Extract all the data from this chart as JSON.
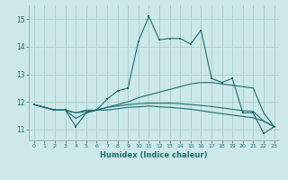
{
  "xlabel": "Humidex (Indice chaleur)",
  "bg_color": "#cce8e8",
  "grid_color": "#aacccc",
  "line_color": "#1a6e6e",
  "xlim": [
    -0.5,
    23.5
  ],
  "ylim": [
    10.6,
    15.5
  ],
  "yticks": [
    11,
    12,
    13,
    14,
    15
  ],
  "xticks": [
    0,
    1,
    2,
    3,
    4,
    5,
    6,
    7,
    8,
    9,
    10,
    11,
    12,
    13,
    14,
    15,
    16,
    17,
    18,
    19,
    20,
    21,
    22,
    23
  ],
  "line1_x": [
    0,
    1,
    2,
    3,
    4,
    5,
    6,
    7,
    8,
    9,
    10,
    11,
    12,
    13,
    14,
    15,
    16,
    17,
    18,
    19,
    20,
    21,
    22,
    23
  ],
  "line1_y": [
    11.9,
    11.8,
    11.7,
    11.7,
    11.1,
    11.6,
    11.7,
    12.1,
    12.4,
    12.5,
    14.2,
    15.1,
    14.25,
    14.3,
    14.3,
    14.1,
    14.6,
    12.85,
    12.7,
    12.85,
    11.6,
    11.6,
    10.85,
    11.1
  ],
  "line2_x": [
    0,
    1,
    2,
    3,
    4,
    5,
    6,
    7,
    8,
    9,
    10,
    11,
    12,
    13,
    14,
    15,
    16,
    17,
    18,
    19,
    20,
    21,
    22,
    23
  ],
  "line2_y": [
    11.9,
    11.8,
    11.7,
    11.7,
    11.6,
    11.7,
    11.7,
    11.8,
    11.9,
    12.0,
    12.15,
    12.25,
    12.35,
    12.45,
    12.55,
    12.65,
    12.7,
    12.7,
    12.65,
    12.6,
    12.55,
    12.5,
    11.6,
    11.1
  ],
  "line3_x": [
    0,
    1,
    2,
    3,
    4,
    5,
    6,
    7,
    8,
    9,
    10,
    11,
    12,
    13,
    14,
    15,
    16,
    17,
    18,
    19,
    20,
    21,
    22,
    23
  ],
  "line3_y": [
    11.9,
    11.8,
    11.7,
    11.7,
    11.6,
    11.65,
    11.7,
    11.7,
    11.75,
    11.8,
    11.82,
    11.85,
    11.82,
    11.8,
    11.77,
    11.73,
    11.68,
    11.62,
    11.57,
    11.52,
    11.47,
    11.42,
    11.3,
    11.1
  ],
  "line4_x": [
    0,
    1,
    2,
    3,
    4,
    5,
    6,
    7,
    8,
    9,
    10,
    11,
    12,
    13,
    14,
    15,
    16,
    17,
    18,
    19,
    20,
    21,
    22,
    23
  ],
  "line4_y": [
    11.9,
    11.8,
    11.7,
    11.7,
    11.4,
    11.6,
    11.7,
    11.8,
    11.85,
    11.9,
    11.93,
    11.95,
    11.95,
    11.95,
    11.93,
    11.9,
    11.87,
    11.83,
    11.78,
    11.73,
    11.68,
    11.65,
    11.3,
    11.1
  ]
}
